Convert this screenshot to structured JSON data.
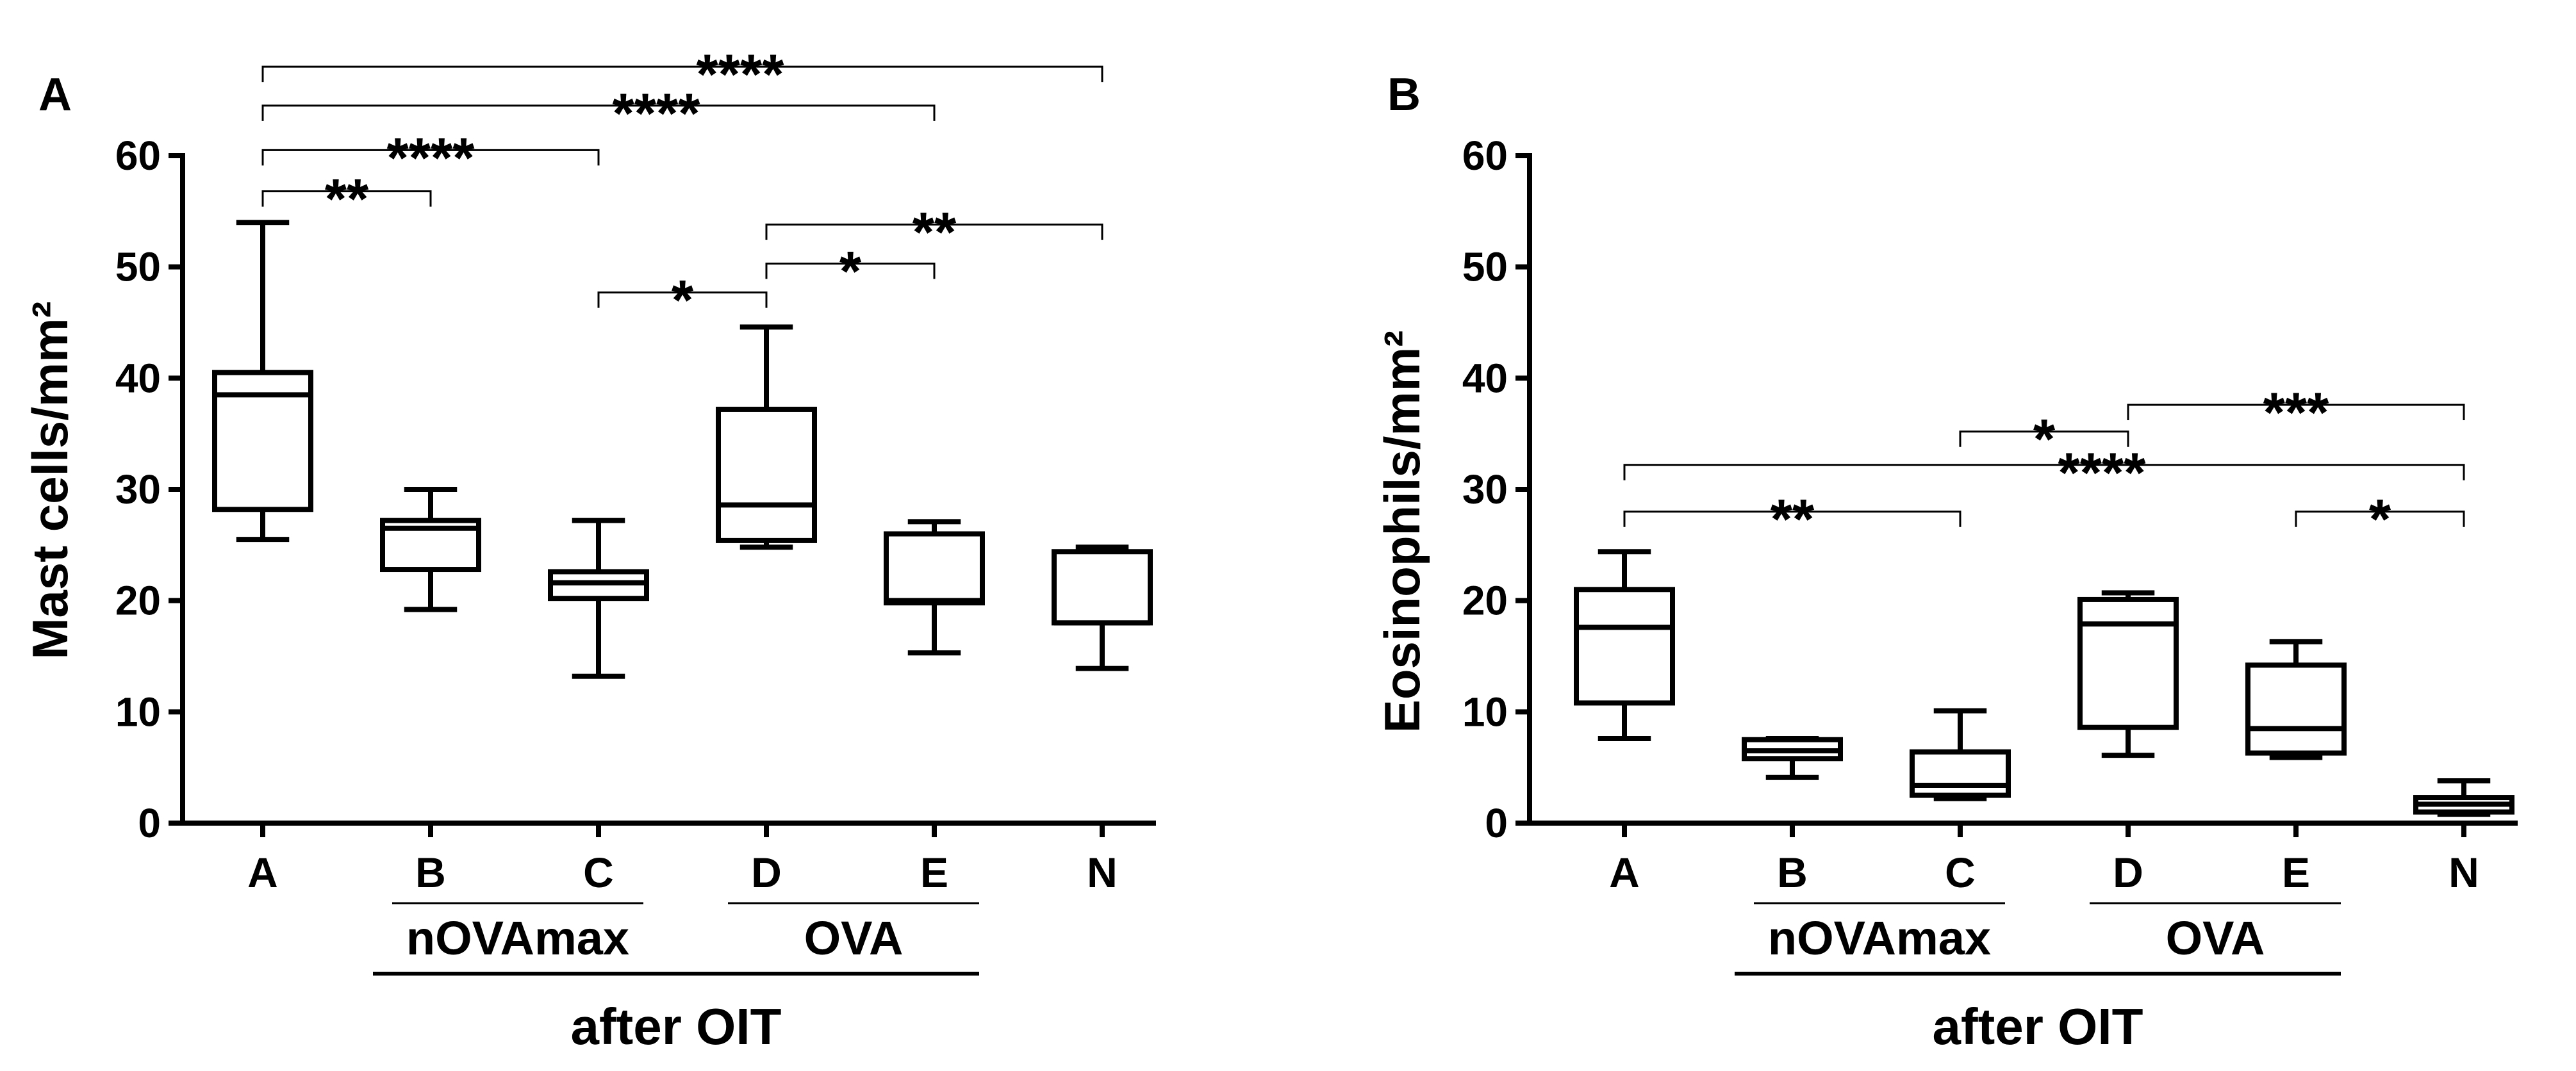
{
  "chart_data": [
    {
      "type": "box",
      "title": "A",
      "xlabel": "",
      "ylabel": "Mast cells/mm²",
      "ylim": [
        0,
        60
      ],
      "yticks": [
        0,
        10,
        20,
        30,
        40,
        50,
        60
      ],
      "categories": [
        "A",
        "B",
        "C",
        "D",
        "E",
        "N"
      ],
      "boxes": [
        {
          "category": "A",
          "min": 25.5,
          "q1": 28.2,
          "median": 38.5,
          "q3": 40.5,
          "max": 54.0
        },
        {
          "category": "B",
          "min": 19.2,
          "q1": 22.8,
          "median": 26.5,
          "q3": 27.2,
          "max": 30.0
        },
        {
          "category": "C",
          "min": 13.2,
          "q1": 20.2,
          "median": 21.6,
          "q3": 22.6,
          "max": 27.2
        },
        {
          "category": "D",
          "min": 24.8,
          "q1": 25.4,
          "median": 28.6,
          "q3": 37.2,
          "max": 44.6
        },
        {
          "category": "E",
          "min": 15.3,
          "q1": 19.8,
          "median": 20.0,
          "q3": 26.0,
          "max": 27.1
        },
        {
          "category": "N",
          "min": 13.9,
          "q1": 18.0,
          "median": 18.0,
          "q3": 24.4,
          "max": 24.8
        }
      ],
      "groups": [
        {
          "label": "nOVAmax",
          "categories": [
            "B",
            "C"
          ]
        },
        {
          "label": "OVA",
          "categories": [
            "D",
            "E"
          ]
        },
        {
          "label": "after OIT",
          "categories": [
            "B",
            "C",
            "D",
            "E"
          ]
        }
      ],
      "significance": [
        {
          "from": "A",
          "to": "N",
          "y": 68.0,
          "label": "****"
        },
        {
          "from": "A",
          "to": "E",
          "y": 64.5,
          "label": "****"
        },
        {
          "from": "A",
          "to": "C",
          "y": 60.5,
          "label": "****"
        },
        {
          "from": "A",
          "to": "B",
          "y": 56.8,
          "label": "**"
        },
        {
          "from": "D",
          "to": "N",
          "y": 53.8,
          "label": "**"
        },
        {
          "from": "D",
          "to": "E",
          "y": 50.3,
          "label": "*"
        },
        {
          "from": "C",
          "to": "D",
          "y": 47.7,
          "label": "*"
        }
      ]
    },
    {
      "type": "box",
      "title": "B",
      "xlabel": "",
      "ylabel": "Eosinophils/mm²",
      "ylim": [
        0,
        60
      ],
      "yticks": [
        0,
        10,
        20,
        30,
        40,
        50,
        60
      ],
      "categories": [
        "A",
        "B",
        "C",
        "D",
        "E",
        "N"
      ],
      "boxes": [
        {
          "category": "A",
          "min": 7.6,
          "q1": 10.8,
          "median": 17.6,
          "q3": 21.0,
          "max": 24.4
        },
        {
          "category": "B",
          "min": 4.1,
          "q1": 5.8,
          "median": 6.5,
          "q3": 7.5,
          "max": 7.6
        },
        {
          "category": "C",
          "min": 2.2,
          "q1": 2.5,
          "median": 3.4,
          "q3": 6.4,
          "max": 10.1
        },
        {
          "category": "D",
          "min": 6.1,
          "q1": 8.6,
          "median": 17.9,
          "q3": 20.1,
          "max": 20.7
        },
        {
          "category": "E",
          "min": 5.9,
          "q1": 6.3,
          "median": 8.5,
          "q3": 14.2,
          "max": 16.3
        },
        {
          "category": "N",
          "min": 0.8,
          "q1": 1.0,
          "median": 1.7,
          "q3": 2.3,
          "max": 3.8
        }
      ],
      "groups": [
        {
          "label": "nOVAmax",
          "categories": [
            "B",
            "C"
          ]
        },
        {
          "label": "OVA",
          "categories": [
            "D",
            "E"
          ]
        },
        {
          "label": "after OIT",
          "categories": [
            "B",
            "C",
            "D",
            "E"
          ]
        }
      ],
      "significance": [
        {
          "from": "D",
          "to": "N",
          "y": 37.6,
          "label": "***"
        },
        {
          "from": "C",
          "to": "D",
          "y": 35.2,
          "label": "*"
        },
        {
          "from": "A",
          "to": "N",
          "y": 32.2,
          "label": "****"
        },
        {
          "from": "A",
          "to": "C",
          "y": 28.0,
          "label": "**"
        },
        {
          "from": "E",
          "to": "N",
          "y": 28.0,
          "label": "*"
        }
      ]
    }
  ]
}
